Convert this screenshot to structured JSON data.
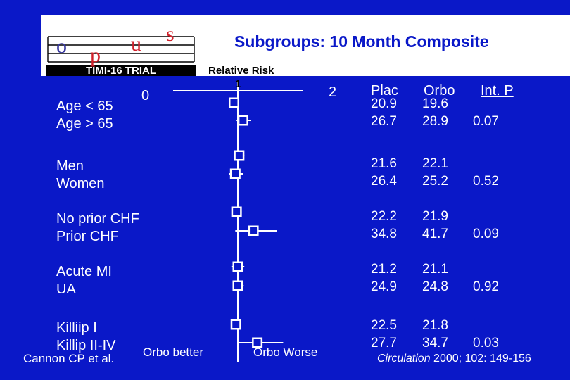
{
  "title": "Subgroups: 10 Month Composite",
  "logo": {
    "top_text": "opus",
    "main_text": "TIMI-16 TRIAL"
  },
  "axis": {
    "label": "Relative Risk",
    "tick_low": "0",
    "tick_mid": "1",
    "tick_high": "2",
    "xlim": [
      0,
      2
    ]
  },
  "columns": {
    "plac": "Plac",
    "orbo": "Orbo",
    "int_p": "Int. P"
  },
  "groups": [
    {
      "labels": [
        "Age  < 65",
        "Age > 65"
      ],
      "plac": [
        "20.9",
        "26.7"
      ],
      "orbo": [
        "19.6",
        "28.9"
      ],
      "p": "0.07"
    },
    {
      "labels": [
        "Men",
        "Women"
      ],
      "plac": [
        "21.6",
        "26.4"
      ],
      "orbo": [
        "22.1",
        "25.2"
      ],
      "p": "0.52"
    },
    {
      "labels": [
        "No prior CHF",
        "Prior CHF"
      ],
      "plac": [
        "22.2",
        "34.8"
      ],
      "orbo": [
        "21.9",
        "41.7"
      ],
      "p": "0.09"
    },
    {
      "labels": [
        "Acute MI",
        "UA"
      ],
      "plac": [
        "21.2",
        "24.9"
      ],
      "orbo": [
        "21.1",
        "24.8"
      ],
      "p": "0.92"
    },
    {
      "labels": [
        "Killiip  I",
        "Killip II-IV"
      ],
      "plac": [
        "22.5",
        "27.7"
      ],
      "orbo": [
        "21.8",
        "34.7"
      ],
      "p": "0.03"
    }
  ],
  "chart_data": {
    "type": "forest",
    "xlabel": "Relative Risk",
    "xlim": [
      0,
      2
    ],
    "reference": 1,
    "rows": [
      {
        "subgroup": "Age  < 65",
        "rr": 0.94,
        "lo": 0.86,
        "hi": 1.02
      },
      {
        "subgroup": "Age > 65",
        "rr": 1.08,
        "lo": 0.98,
        "hi": 1.2
      },
      {
        "subgroup": "Men",
        "rr": 1.02,
        "lo": 0.95,
        "hi": 1.1
      },
      {
        "subgroup": "Women",
        "rr": 0.96,
        "lo": 0.86,
        "hi": 1.08
      },
      {
        "subgroup": "No prior CHF",
        "rr": 0.98,
        "lo": 0.92,
        "hi": 1.06
      },
      {
        "subgroup": "Prior CHF",
        "rr": 1.24,
        "lo": 0.96,
        "hi": 1.6
      },
      {
        "subgroup": "Acute MI",
        "rr": 1.0,
        "lo": 0.9,
        "hi": 1.1
      },
      {
        "subgroup": "UA",
        "rr": 1.0,
        "lo": 0.92,
        "hi": 1.09
      },
      {
        "subgroup": "Killiip  I",
        "rr": 0.97,
        "lo": 0.9,
        "hi": 1.05
      },
      {
        "subgroup": "Killip II-IV",
        "rr": 1.3,
        "lo": 1.02,
        "hi": 1.7
      }
    ]
  },
  "footer": {
    "orbo_better": "Orbo better",
    "orbo_worse": "Orbo Worse",
    "author": "Cannon CP et al.",
    "journal": "Circulation",
    "ref": " 2000; 102: 149-156"
  },
  "colors": {
    "background": "#0a18c8",
    "text": "#ffffff",
    "title": "#0a18c8",
    "logo_red": "#d0202a"
  }
}
